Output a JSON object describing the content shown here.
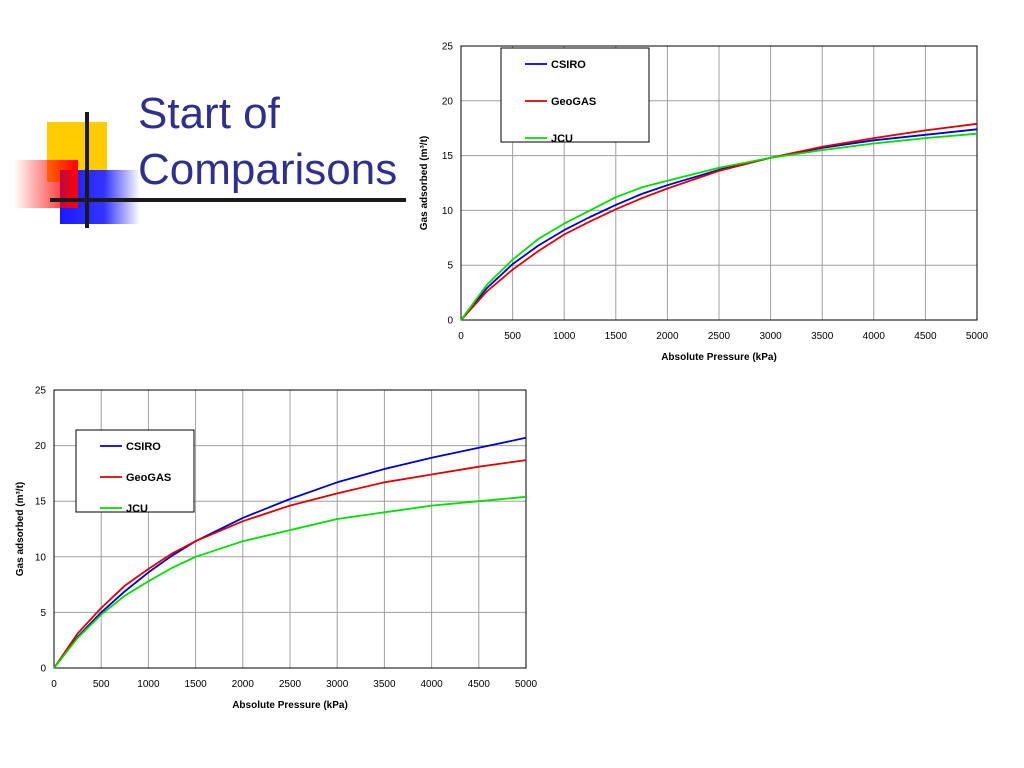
{
  "slide": {
    "title_line1": "Start of",
    "title_line2": "Comparisons"
  },
  "colors": {
    "title": "#2f2f8f",
    "CSIRO": "#0000cc",
    "GeoGAS": "#dd0000",
    "JCU": "#00dd00"
  },
  "chart_data": [
    {
      "type": "line",
      "xlabel": "Absolute Pressure (kPa)",
      "ylabel": "Gas adsorbed (m³/t)",
      "xlim": [
        0,
        5000
      ],
      "ylim": [
        0,
        25
      ],
      "xticks": [
        0,
        500,
        1000,
        1500,
        2000,
        2500,
        3000,
        3500,
        4000,
        4500,
        5000
      ],
      "yticks": [
        0,
        5,
        10,
        15,
        20,
        25
      ],
      "grid": true,
      "legend_position": "top-left",
      "series": [
        {
          "name": "CSIRO",
          "color": "#0000cc",
          "x": [
            0,
            250,
            500,
            750,
            1000,
            1250,
            1500,
            1750,
            2000,
            2500,
            3000,
            3500,
            4000,
            4500,
            5000
          ],
          "y": [
            0,
            2.9,
            5.1,
            6.8,
            8.2,
            9.4,
            10.5,
            11.5,
            12.3,
            13.7,
            14.8,
            15.7,
            16.4,
            16.9,
            17.4
          ]
        },
        {
          "name": "GeoGAS",
          "color": "#dd0000",
          "x": [
            0,
            250,
            500,
            750,
            1000,
            1250,
            1500,
            1750,
            2000,
            2500,
            3000,
            3500,
            4000,
            4500,
            5000
          ],
          "y": [
            0,
            2.6,
            4.6,
            6.3,
            7.8,
            9.0,
            10.1,
            11.1,
            12.0,
            13.6,
            14.8,
            15.8,
            16.6,
            17.3,
            17.9
          ]
        },
        {
          "name": "JCU",
          "color": "#00dd00",
          "x": [
            0,
            250,
            500,
            750,
            1000,
            1250,
            1500,
            1750,
            2000,
            2500,
            3000,
            3500,
            4000,
            4500,
            5000
          ],
          "y": [
            0,
            3.2,
            5.5,
            7.4,
            8.8,
            10.0,
            11.2,
            12.1,
            12.7,
            13.9,
            14.8,
            15.5,
            16.1,
            16.6,
            17.0
          ]
        }
      ]
    },
    {
      "type": "line",
      "xlabel": "Absolute Pressure (kPa)",
      "ylabel": "Gas adsorbed (m³/t)",
      "xlim": [
        0,
        5000
      ],
      "ylim": [
        0,
        25
      ],
      "xticks": [
        0,
        500,
        1000,
        1500,
        2000,
        2500,
        3000,
        3500,
        4000,
        4500,
        5000
      ],
      "yticks": [
        0,
        5,
        10,
        15,
        20,
        25
      ],
      "grid": true,
      "legend_position": "top-left",
      "series": [
        {
          "name": "CSIRO",
          "color": "#0000cc",
          "x": [
            0,
            250,
            500,
            750,
            1000,
            1250,
            1500,
            2000,
            2500,
            3000,
            3500,
            4000,
            4500,
            5000
          ],
          "y": [
            0,
            2.8,
            5.0,
            6.9,
            8.6,
            10.1,
            11.4,
            13.5,
            15.2,
            16.7,
            17.9,
            18.9,
            19.8,
            20.7
          ]
        },
        {
          "name": "GeoGAS",
          "color": "#dd0000",
          "x": [
            0,
            250,
            500,
            750,
            1000,
            1250,
            1500,
            2000,
            2500,
            3000,
            3500,
            4000,
            4500,
            5000
          ],
          "y": [
            0,
            3.1,
            5.4,
            7.4,
            8.9,
            10.3,
            11.4,
            13.2,
            14.6,
            15.7,
            16.7,
            17.4,
            18.1,
            18.7
          ]
        },
        {
          "name": "JCU",
          "color": "#00dd00",
          "x": [
            0,
            250,
            500,
            750,
            1000,
            1250,
            1500,
            2000,
            2500,
            3000,
            3500,
            4000,
            4500,
            5000
          ],
          "y": [
            0,
            2.7,
            4.8,
            6.5,
            7.8,
            9.0,
            10.0,
            11.4,
            12.4,
            13.4,
            14.0,
            14.6,
            15.0,
            15.4
          ]
        }
      ]
    }
  ]
}
